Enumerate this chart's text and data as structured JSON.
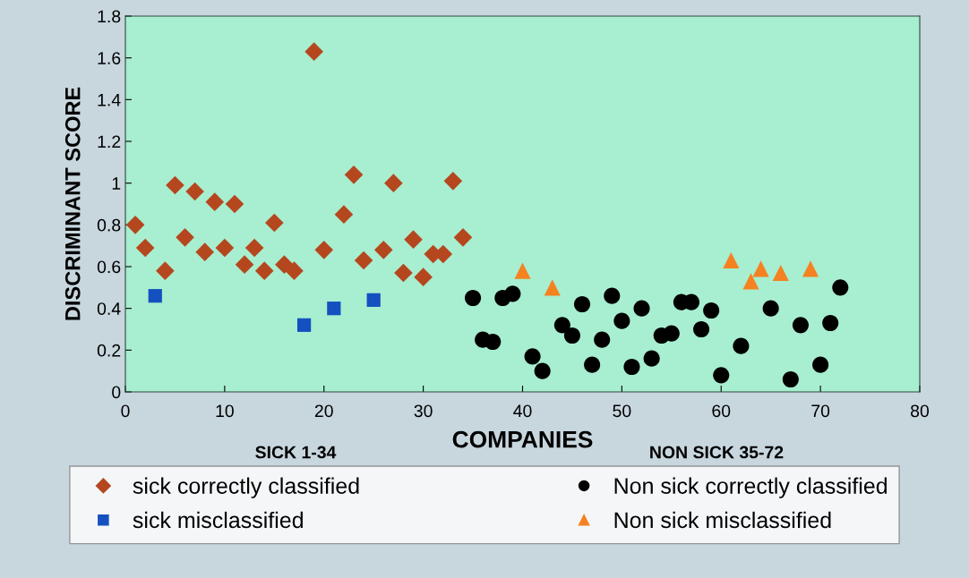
{
  "chart_data": {
    "type": "scatter",
    "xlabel": "COMPANIES",
    "ylabel": "DISCRIMINANT SCORE",
    "annotations": [
      "SICK 1-34",
      "NON SICK 35-72"
    ],
    "xlim": [
      0,
      80
    ],
    "xticks": [
      0,
      10,
      20,
      30,
      40,
      50,
      60,
      70,
      80
    ],
    "ylim": [
      0,
      1.8
    ],
    "yticks": [
      0,
      0.2,
      0.4,
      0.6,
      0.8,
      1,
      1.2,
      1.4,
      1.6,
      1.8
    ],
    "grid": false,
    "legend": "bottom",
    "series": [
      {
        "name": "sick correctly classified",
        "color": "#b5471f",
        "marker": "diamond",
        "x": [
          1,
          2,
          4,
          5,
          6,
          7,
          8,
          9,
          10,
          11,
          12,
          13,
          14,
          15,
          16,
          17,
          19,
          20,
          22,
          23,
          24,
          26,
          27,
          28,
          29,
          30,
          31,
          32,
          33,
          34
        ],
        "values": [
          0.8,
          0.69,
          0.58,
          0.99,
          0.74,
          0.96,
          0.67,
          0.91,
          0.69,
          0.9,
          0.61,
          0.69,
          0.58,
          0.81,
          0.61,
          0.58,
          1.63,
          0.68,
          0.85,
          1.04,
          0.63,
          0.68,
          1.0,
          0.57,
          0.73,
          0.55,
          0.66,
          0.66,
          1.01,
          0.74
        ]
      },
      {
        "name": "sick misclassified",
        "color": "#1450c0",
        "marker": "square",
        "x": [
          3,
          18,
          21,
          25
        ],
        "values": [
          0.46,
          0.32,
          0.4,
          0.44
        ]
      },
      {
        "name": "Non sick correctly classified",
        "color": "#000000",
        "marker": "circle",
        "x": [
          35,
          36,
          37,
          38,
          39,
          41,
          42,
          44,
          45,
          46,
          47,
          48,
          49,
          50,
          51,
          52,
          53,
          54,
          55,
          56,
          57,
          58,
          59,
          60,
          62,
          65,
          67,
          68,
          70,
          71,
          72
        ],
        "values": [
          0.45,
          0.25,
          0.24,
          0.45,
          0.47,
          0.17,
          0.1,
          0.32,
          0.27,
          0.42,
          0.13,
          0.25,
          0.46,
          0.34,
          0.12,
          0.4,
          0.16,
          0.27,
          0.28,
          0.43,
          0.43,
          0.3,
          0.39,
          0.08,
          0.22,
          0.4,
          0.06,
          0.32,
          0.13,
          0.33,
          0.5
        ]
      },
      {
        "name": "Non sick misclassified",
        "color": "#f58220",
        "marker": "triangle",
        "x": [
          40,
          43,
          61,
          63,
          64,
          66,
          69
        ],
        "values": [
          0.58,
          0.5,
          0.63,
          0.53,
          0.59,
          0.57,
          0.59
        ]
      }
    ]
  }
}
